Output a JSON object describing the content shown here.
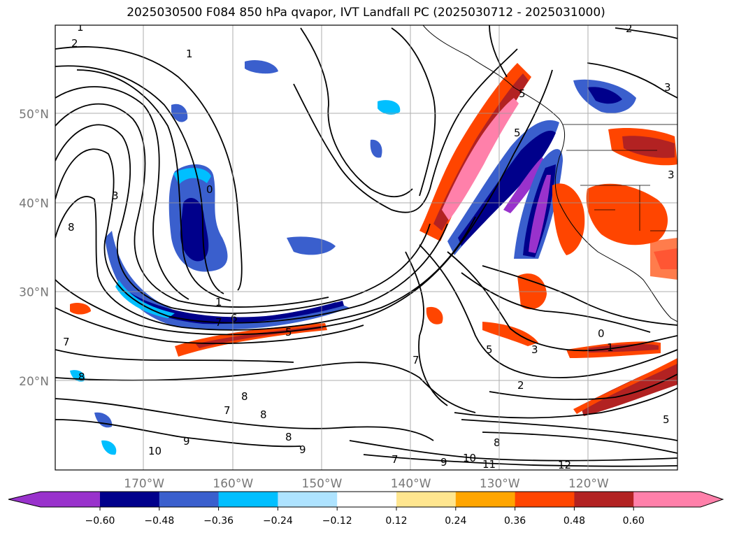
{
  "chart_data": {
    "type": "heatmap",
    "title": "2025030500 F084 850 hPa qvapor, IVT Landfall PC (2025030712 - 2025031000)",
    "x_ticks": [
      "170°W",
      "160°W",
      "150°W",
      "140°W",
      "130°W",
      "120°W"
    ],
    "y_ticks": [
      "50°N",
      "40°N",
      "30°N",
      "20°N"
    ],
    "xlim": [
      -180,
      -110
    ],
    "ylim": [
      10,
      60
    ],
    "grid": true,
    "colorbar": {
      "orientation": "horizontal",
      "extend": "both",
      "tick_labels": [
        "−0.60",
        "−0.48",
        "−0.36",
        "−0.24",
        "−0.12",
        "0.12",
        "0.24",
        "0.36",
        "0.48",
        "0.60"
      ],
      "colors": [
        "#9932cc",
        "#00008b",
        "#3a5fcd",
        "#00bfff",
        "#aee3ff",
        "#ffffff",
        "#ffe68f",
        "#ffa500",
        "#ff4500",
        "#b22222",
        "#ff80aa"
      ]
    },
    "contour_labels": [
      "1",
      "2",
      "3",
      "5",
      "6",
      "7",
      "8",
      "9",
      "10",
      "11",
      "12",
      "0"
    ]
  }
}
